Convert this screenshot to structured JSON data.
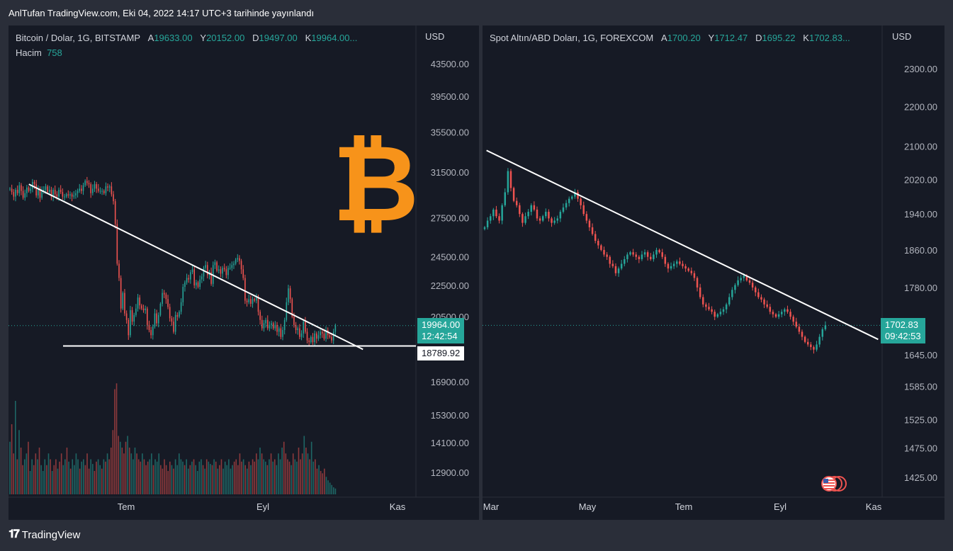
{
  "published": "AnlTufan TradingView.com, Eki 04, 2022 14:17 UTC+3 tarihinde yayınlandı",
  "footer": {
    "brand": "TradingView"
  },
  "colors": {
    "up": "#26a69a",
    "down": "#ef5350",
    "bg": "#161a25",
    "frame": "#2a2e39",
    "bitcoin": "#f7931a"
  },
  "btc": {
    "symbol": "Bitcoin / Dolar, 1G, BITSTAMP",
    "o_label": "A",
    "o_value": "19633.00",
    "h_label": "Y",
    "h_value": "20152.00",
    "l_label": "D",
    "l_value": "19497.00",
    "c_label": "K",
    "c_value": "19964.00...",
    "volume_label": "Hacim",
    "volume_value": "758",
    "currency": "USD",
    "last_price": "19964.00",
    "countdown": "12:42:54",
    "support_label": "18789.92",
    "logo": "bitcoin-logo"
  },
  "gold": {
    "symbol": "Spot Altın/ABD Doları, 1G, FOREXCOM",
    "o_label": "A",
    "o_value": "1700.20",
    "h_label": "Y",
    "h_value": "1712.47",
    "l_label": "D",
    "l_value": "1695.22",
    "c_label": "K",
    "c_value": "1702.83...",
    "currency": "USD",
    "last_price": "1702.83",
    "countdown": "09:42:53",
    "flag_icon": "us-flag-icon"
  },
  "chart_data": [
    {
      "type": "candlestick",
      "ticks": [
        "43500.00",
        "39500.00",
        "35500.00",
        "31500.00",
        "27500.00",
        "24500.00",
        "22500.00",
        "20500.00",
        "16900.00",
        "15300.00",
        "14100.00",
        "12900.00"
      ],
      "x_labels": [
        "Tem",
        "Eyl",
        "Kas"
      ],
      "scale": "log",
      "last": 19964,
      "support": 18789.92,
      "trendline": [
        {
          "x": 0.05,
          "y": 30400
        },
        {
          "x": 0.87,
          "y": 18600
        }
      ],
      "path": [
        30000,
        29700,
        29300,
        29900,
        29600,
        30300,
        29800,
        29200,
        29600,
        30100,
        29800,
        30000,
        30600,
        30400,
        29400,
        30000,
        29200,
        29800,
        29900,
        30200,
        29700,
        29900,
        29300,
        29900,
        29500,
        29300,
        29900,
        29700,
        29300,
        29300,
        29500,
        29400,
        29500,
        29300,
        29400,
        29600,
        29800,
        30000,
        29800,
        30300,
        30700,
        30500,
        30400,
        29600,
        30000,
        30400,
        30000,
        29800,
        29800,
        29800,
        29600,
        30200,
        30100,
        30200,
        29500,
        28900,
        27000,
        24000,
        23000,
        21000,
        22000,
        20700,
        20300,
        19400,
        20900,
        20200,
        20600,
        21000,
        21700,
        21200,
        21000,
        20900,
        21000,
        20000,
        19700,
        19400,
        19900,
        20700,
        20100,
        20600,
        21300,
        22000,
        21900,
        21600,
        21100,
        20400,
        20200,
        19600,
        20600,
        20500,
        20800,
        21400,
        22400,
        22700,
        23000,
        22900,
        23400,
        23600,
        22500,
        22700,
        22400,
        22900,
        23100,
        23700,
        23900,
        23200,
        23400,
        22600,
        23900,
        24100,
        23500,
        23600,
        23300,
        23700,
        23600,
        23200,
        23700,
        23700,
        23900,
        24000,
        24300,
        24400,
        24200,
        23600,
        23000,
        21500,
        21400,
        21600,
        21300,
        21600,
        21500,
        21700,
        20800,
        20300,
        19800,
        20100,
        20300,
        19800,
        20000,
        20100,
        19800,
        20000,
        19600,
        19800,
        19300,
        19700,
        20300,
        21400,
        22300,
        21600,
        20500,
        20000,
        19700,
        19800,
        19300,
        19500,
        20200,
        19600,
        19100,
        19000,
        19300,
        19000,
        19500,
        19200,
        19400,
        19600,
        19500,
        19200,
        19700,
        19400,
        19300,
        19100,
        19600,
        19964
      ],
      "volume": [
        0.45,
        0.6,
        0.35,
        0.8,
        0.3,
        0.55,
        0.4,
        0.25,
        0.3,
        0.35,
        0.45,
        0.2,
        0.3,
        0.25,
        0.35,
        0.3,
        0.4,
        0.25,
        0.2,
        0.3,
        0.25,
        0.35,
        0.3,
        0.2,
        0.25,
        0.3,
        0.22,
        0.28,
        0.35,
        0.25,
        0.3,
        0.4,
        0.28,
        0.22,
        0.3,
        0.25,
        0.35,
        0.3,
        0.22,
        0.28,
        0.3,
        0.25,
        0.35,
        0.22,
        0.3,
        0.26,
        0.2,
        0.28,
        0.3,
        0.25,
        0.22,
        0.3,
        0.28,
        0.35,
        0.3,
        0.4,
        0.55,
        0.9,
        0.95,
        0.5,
        0.45,
        0.4,
        0.35,
        0.45,
        0.5,
        0.4,
        0.35,
        0.3,
        0.4,
        0.35,
        0.3,
        0.28,
        0.35,
        0.3,
        0.25,
        0.28,
        0.3,
        0.35,
        0.25,
        0.3,
        0.28,
        0.35,
        0.25,
        0.22,
        0.3,
        0.25,
        0.2,
        0.28,
        0.25,
        0.22,
        0.3,
        0.25,
        0.35,
        0.3,
        0.28,
        0.25,
        0.3,
        0.22,
        0.25,
        0.28,
        0.3,
        0.25,
        0.2,
        0.28,
        0.3,
        0.25,
        0.22,
        0.3,
        0.28,
        0.26,
        0.25,
        0.3,
        0.28,
        0.22,
        0.25,
        0.3,
        0.22,
        0.28,
        0.25,
        0.3,
        0.22,
        0.25,
        0.28,
        0.3,
        0.25,
        0.35,
        0.28,
        0.3,
        0.25,
        0.22,
        0.28,
        0.25,
        0.3,
        0.28,
        0.35,
        0.3,
        0.4,
        0.35,
        0.3,
        0.28,
        0.25,
        0.3,
        0.35,
        0.28,
        0.3,
        0.25,
        0.35,
        0.3,
        0.4,
        0.45,
        0.35,
        0.3,
        0.28,
        0.25,
        0.35,
        0.3,
        0.28,
        0.4,
        0.3,
        0.35,
        0.5,
        0.4,
        0.35,
        0.3,
        0.45,
        0.28,
        0.3,
        0.22,
        0.25,
        0.2,
        0.18,
        0.22,
        0.15,
        0.12,
        0.1,
        0.08,
        0.06,
        0.05
      ]
    },
    {
      "type": "candlestick",
      "ticks": [
        "2300.00",
        "2200.00",
        "2100.00",
        "2020.00",
        "1940.00",
        "1860.00",
        "1780.00",
        "1645.00",
        "1585.00",
        "1525.00",
        "1475.00",
        "1425.00"
      ],
      "x_labels": [
        "Mar",
        "May",
        "Tem",
        "Eyl",
        "Kas"
      ],
      "scale": "log",
      "last": 1702.83,
      "trendline": [
        {
          "x": 0.01,
          "y": 2090
        },
        {
          "x": 0.99,
          "y": 1675
        }
      ],
      "path": [
        1910,
        1925,
        1935,
        1950,
        1935,
        1925,
        1960,
        1990,
        2040,
        2000,
        1970,
        1960,
        1940,
        1920,
        1935,
        1945,
        1960,
        1950,
        1930,
        1925,
        1935,
        1945,
        1930,
        1920,
        1925,
        1930,
        1945,
        1955,
        1965,
        1975,
        1980,
        1990,
        1975,
        1960,
        1940,
        1925,
        1910,
        1895,
        1880,
        1870,
        1860,
        1850,
        1845,
        1830,
        1825,
        1810,
        1820,
        1830,
        1840,
        1850,
        1855,
        1850,
        1845,
        1840,
        1850,
        1855,
        1845,
        1840,
        1850,
        1860,
        1855,
        1845,
        1830,
        1820,
        1825,
        1830,
        1835,
        1830,
        1825,
        1820,
        1815,
        1810,
        1800,
        1780,
        1760,
        1745,
        1740,
        1735,
        1730,
        1720,
        1725,
        1730,
        1735,
        1745,
        1760,
        1775,
        1785,
        1795,
        1800,
        1805,
        1795,
        1790,
        1780,
        1770,
        1760,
        1755,
        1745,
        1740,
        1730,
        1725,
        1720,
        1725,
        1730,
        1735,
        1730,
        1720,
        1710,
        1700,
        1690,
        1680,
        1670,
        1665,
        1660,
        1655,
        1665,
        1680,
        1695,
        1702.83
      ]
    }
  ]
}
